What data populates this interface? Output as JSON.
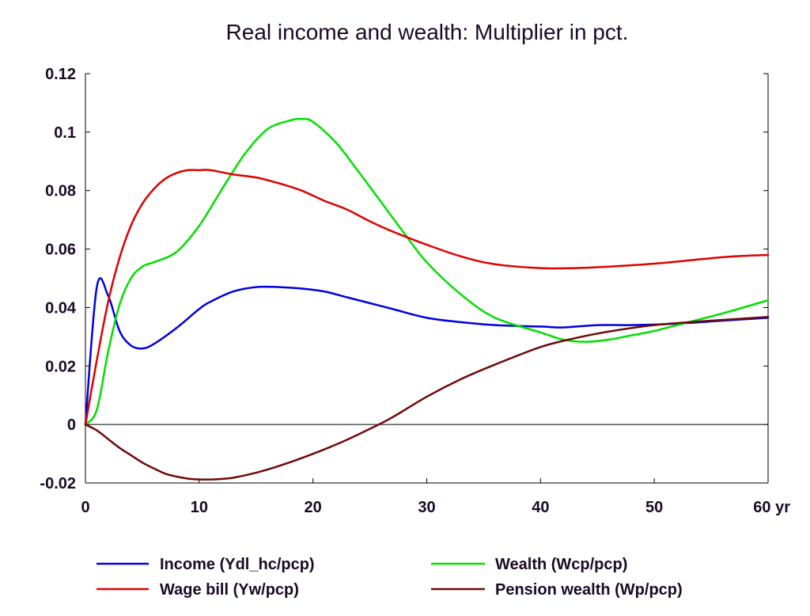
{
  "chart_data": {
    "type": "line",
    "title": "Real income and wealth: Multiplier in pct.",
    "xlabel": "",
    "ylabel": "",
    "xlim": [
      0,
      60
    ],
    "ylim": [
      -0.02,
      0.12
    ],
    "x_ticks": [
      {
        "value": 0,
        "label": "0"
      },
      {
        "value": 10,
        "label": "10"
      },
      {
        "value": 20,
        "label": "20"
      },
      {
        "value": 30,
        "label": "30"
      },
      {
        "value": 40,
        "label": "40"
      },
      {
        "value": 50,
        "label": "50"
      },
      {
        "value": 60,
        "label": "60 yr"
      }
    ],
    "y_ticks": [
      {
        "value": -0.02,
        "label": "-0.02"
      },
      {
        "value": 0,
        "label": "0"
      },
      {
        "value": 0.02,
        "label": "0.02"
      },
      {
        "value": 0.04,
        "label": "0.04"
      },
      {
        "value": 0.06,
        "label": "0.06"
      },
      {
        "value": 0.08,
        "label": "0.08"
      },
      {
        "value": 0.1,
        "label": "0.1"
      },
      {
        "value": 0.12,
        "label": "0.12"
      }
    ],
    "grid": false,
    "legend_position": "bottom",
    "series": [
      {
        "name": "Income (Ydl_hc/pcp)",
        "color": "#0000e0",
        "x": [
          0,
          1,
          2,
          3,
          4,
          5,
          6,
          8,
          10,
          11,
          13,
          15,
          17,
          19,
          21,
          23,
          25,
          27,
          30,
          33,
          36,
          40,
          42,
          45,
          48,
          52,
          56,
          60
        ],
        "y": [
          0,
          0.047,
          0.044,
          0.032,
          0.027,
          0.026,
          0.0275,
          0.033,
          0.0395,
          0.042,
          0.0455,
          0.047,
          0.047,
          0.0465,
          0.0455,
          0.0435,
          0.0415,
          0.0395,
          0.0365,
          0.035,
          0.034,
          0.0335,
          0.0332,
          0.034,
          0.034,
          0.0345,
          0.0355,
          0.0365
        ]
      },
      {
        "name": "Wealth (Wcp/pcp)",
        "color": "#00e000",
        "x": [
          0,
          1,
          2,
          3,
          4,
          5,
          6,
          8,
          10,
          12,
          14,
          16,
          18,
          19,
          20,
          22,
          24,
          26,
          28,
          30,
          33,
          36,
          40,
          42,
          44,
          46,
          48,
          50,
          53,
          56,
          60
        ],
        "y": [
          0,
          0.005,
          0.025,
          0.041,
          0.05,
          0.054,
          0.0555,
          0.059,
          0.068,
          0.0805,
          0.0925,
          0.101,
          0.104,
          0.1045,
          0.1035,
          0.0965,
          0.0865,
          0.076,
          0.0655,
          0.0555,
          0.0445,
          0.0365,
          0.0315,
          0.029,
          0.0283,
          0.029,
          0.0305,
          0.032,
          0.035,
          0.038,
          0.0425
        ]
      },
      {
        "name": "Wage bill (Yw/pcp)",
        "color": "#e00000",
        "x": [
          0,
          1,
          2,
          3,
          4,
          5,
          6,
          7,
          8,
          9,
          10,
          11,
          13,
          15,
          17,
          19,
          21,
          23,
          25,
          27,
          30,
          33,
          36,
          40,
          43,
          46,
          50,
          54,
          57,
          60
        ],
        "y": [
          0,
          0.022,
          0.042,
          0.057,
          0.068,
          0.0755,
          0.0805,
          0.084,
          0.086,
          0.087,
          0.087,
          0.087,
          0.0855,
          0.0845,
          0.0825,
          0.08,
          0.0765,
          0.0735,
          0.0695,
          0.066,
          0.0615,
          0.0575,
          0.0548,
          0.0535,
          0.0535,
          0.054,
          0.055,
          0.0565,
          0.0575,
          0.058
        ]
      },
      {
        "name": "Pension wealth (Wp/pcp)",
        "color": "#6e0a0a",
        "x": [
          0,
          1,
          2,
          3,
          4,
          5,
          6,
          7,
          8,
          9,
          10,
          11,
          12,
          13,
          15,
          17,
          19,
          21,
          23,
          25,
          27,
          30,
          33,
          36,
          40,
          43,
          46,
          50,
          55,
          60
        ],
        "y": [
          0,
          -0.002,
          -0.005,
          -0.008,
          -0.0105,
          -0.013,
          -0.015,
          -0.0168,
          -0.0178,
          -0.0185,
          -0.0188,
          -0.0188,
          -0.0186,
          -0.0182,
          -0.0165,
          -0.0142,
          -0.0115,
          -0.0085,
          -0.0052,
          -0.0015,
          0.0025,
          0.0095,
          0.0155,
          0.0205,
          0.0265,
          0.0295,
          0.0318,
          0.034,
          0.0355,
          0.0368
        ]
      }
    ]
  }
}
